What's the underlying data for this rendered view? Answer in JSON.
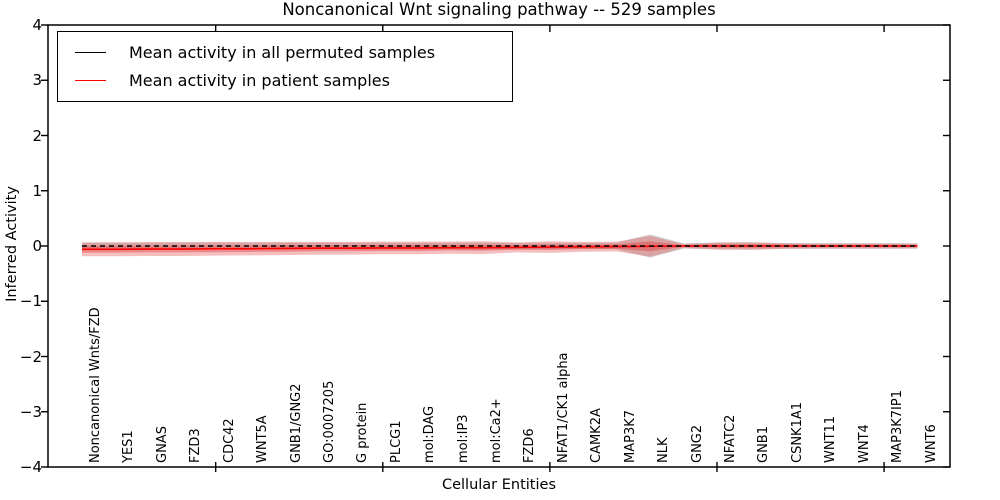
{
  "title": "Noncanonical Wnt signaling pathway -- 529 samples",
  "legend": {
    "items": [
      {
        "label": "Mean activity in all permuted samples",
        "color": "#000000"
      },
      {
        "label": "Mean activity in patient samples",
        "color": "#ff0000"
      }
    ],
    "position": "upper left"
  },
  "chart_data": {
    "type": "line",
    "title": "Noncanonical Wnt signaling pathway -- 529 samples",
    "xlabel": "Cellular Entities",
    "ylabel": "Inferred Activity",
    "ylim": [
      -4,
      4
    ],
    "ytick_labels": [
      "−4",
      "−3",
      "−2",
      "−1",
      "0",
      "1",
      "2",
      "3",
      "4"
    ],
    "ytick_values": [
      -4,
      -3,
      -2,
      -1,
      0,
      1,
      2,
      3,
      4
    ],
    "x_major_tick_indices": [
      4,
      9,
      14,
      19,
      24
    ],
    "grid": false,
    "categories": [
      "Noncanonical Wnts/FZD",
      "YES1",
      "GNAS",
      "FZD3",
      "CDC42",
      "WNT5A",
      "GNB1/GNG2",
      "GO:0007205",
      "G protein",
      "PLCG1",
      "mol:DAG",
      "mol:IP3",
      "mol:Ca2+",
      "FZD6",
      "NFAT1/CK1 alpha",
      "CAMK2A",
      "MAP3K7",
      "NLK",
      "GNG2",
      "NFATC2",
      "GNB1",
      "CSNK1A1",
      "WNT11",
      "WNT4",
      "MAP3K7IP1",
      "WNT6"
    ],
    "series": [
      {
        "name": "Mean activity in all permuted samples",
        "color": "#000000",
        "style": "dashed",
        "values": [
          0,
          0,
          0,
          0,
          0,
          0,
          0,
          0,
          0,
          0,
          0,
          0,
          0,
          0,
          0,
          0,
          0,
          0,
          0,
          0,
          0,
          0,
          0,
          0,
          0,
          0
        ]
      },
      {
        "name": "Mean activity in patient samples",
        "color": "#ff0000",
        "style": "solid",
        "values": [
          -0.06,
          -0.06,
          -0.055,
          -0.055,
          -0.05,
          -0.05,
          -0.045,
          -0.04,
          -0.04,
          -0.035,
          -0.035,
          -0.03,
          -0.03,
          -0.025,
          -0.02,
          -0.015,
          -0.01,
          -0.005,
          0,
          0,
          0,
          0,
          0,
          0,
          0,
          0
        ]
      }
    ],
    "bands": [
      {
        "name": "permuted-sample-range",
        "color": "#8a8a8a",
        "opacity": 0.35,
        "center_series": 0,
        "half_widths": [
          0.06,
          0.06,
          0.06,
          0.06,
          0.06,
          0.06,
          0.06,
          0.06,
          0.06,
          0.06,
          0.06,
          0.058,
          0.06,
          0.055,
          0.058,
          0.055,
          0.06,
          0.21,
          0.05,
          0.06,
          0.06,
          0.055,
          0.052,
          0.052,
          0.052,
          0.05
        ]
      },
      {
        "name": "patient-sample-range-outer",
        "color": "#e33c3c",
        "opacity": 0.33,
        "center_series": 1,
        "half_widths": [
          0.125,
          0.125,
          0.125,
          0.125,
          0.125,
          0.12,
          0.12,
          0.115,
          0.115,
          0.115,
          0.115,
          0.11,
          0.115,
          0.09,
          0.105,
          0.09,
          0.09,
          0.19,
          0.035,
          0.065,
          0.07,
          0.05,
          0.045,
          0.045,
          0.045,
          0.04
        ]
      },
      {
        "name": "patient-sample-range-inner",
        "color": "#e33c3c",
        "opacity": 0.42,
        "center_series": 1,
        "half_widths": [
          0.06,
          0.06,
          0.06,
          0.06,
          0.06,
          0.058,
          0.058,
          0.055,
          0.055,
          0.055,
          0.055,
          0.05,
          0.055,
          0.042,
          0.05,
          0.042,
          0.042,
          0.09,
          0.016,
          0.03,
          0.032,
          0.022,
          0.02,
          0.02,
          0.02,
          0.018
        ]
      }
    ]
  }
}
